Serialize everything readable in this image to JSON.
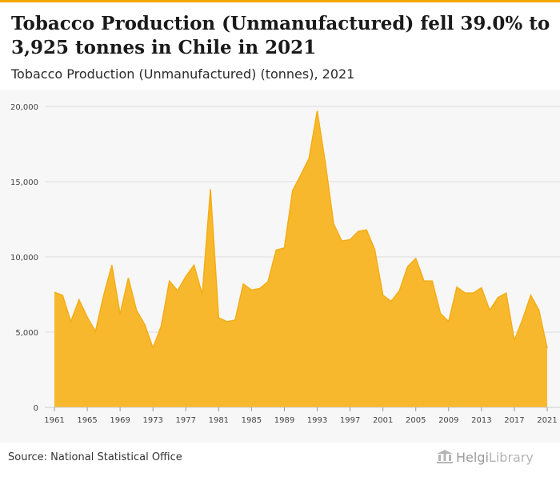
{
  "title": "Tobacco Production (Unmanufactured) fell 39.0% to 3,925 tonnes in Chile in 2021",
  "subtitle": "Tobacco Production (Unmanufactured) (tonnes), 2021",
  "source": "Source: National Statistical Office",
  "brand": {
    "name": "Helgi",
    "suffix": "Library"
  },
  "colors": {
    "area": "#f8b82e",
    "line": "#f4ad14",
    "accent": "#f5a800",
    "grid": "#dddddd"
  },
  "chart_data": {
    "type": "area",
    "title": "Tobacco Production (Unmanufactured) fell 39.0% to 3,925 tonnes in Chile in 2021",
    "subtitle": "Tobacco Production (Unmanufactured) (tonnes), 2021",
    "xlabel": "",
    "ylabel": "",
    "xlim": [
      1961,
      2021
    ],
    "ylim": [
      0,
      20000
    ],
    "grid": true,
    "y_ticks": [
      {
        "value": 0,
        "label": "0"
      },
      {
        "value": 5000,
        "label": "5,000"
      },
      {
        "value": 10000,
        "label": "10,000"
      },
      {
        "value": 15000,
        "label": "15,000"
      },
      {
        "value": 20000,
        "label": "20,000"
      }
    ],
    "x_ticks": [
      "1961",
      "1965",
      "1969",
      "1973",
      "1977",
      "1981",
      "1985",
      "1989",
      "1993",
      "1997",
      "2001",
      "2005",
      "2009",
      "2013",
      "2017",
      "2021"
    ],
    "x": [
      1961,
      1962,
      1963,
      1964,
      1965,
      1966,
      1967,
      1968,
      1969,
      1970,
      1971,
      1972,
      1973,
      1974,
      1975,
      1976,
      1977,
      1978,
      1979,
      1980,
      1981,
      1982,
      1983,
      1984,
      1985,
      1986,
      1987,
      1988,
      1989,
      1990,
      1991,
      1992,
      1993,
      1994,
      1995,
      1996,
      1997,
      1998,
      1999,
      2000,
      2001,
      2002,
      2003,
      2004,
      2005,
      2006,
      2007,
      2008,
      2009,
      2010,
      2011,
      2012,
      2013,
      2014,
      2015,
      2016,
      2017,
      2018,
      2019,
      2020,
      2021
    ],
    "series": [
      {
        "values": [
          7650,
          7450,
          5700,
          7150,
          6000,
          5050,
          7450,
          9450,
          6200,
          8600,
          6450,
          5500,
          3950,
          5400,
          8400,
          7750,
          8700,
          9450,
          7500,
          14500,
          5950,
          5700,
          5800,
          8200,
          7800,
          7900,
          8350,
          10450,
          10600,
          14400,
          15450,
          16550,
          19700,
          16200,
          12200,
          11050,
          11150,
          11700,
          11800,
          10500,
          7450,
          7050,
          7750,
          9350,
          9900,
          8400,
          8400,
          6250,
          5700,
          8000,
          7600,
          7600,
          7950,
          6450,
          7300,
          7600,
          4450,
          5850,
          7450,
          6450,
          3925
        ]
      }
    ]
  }
}
